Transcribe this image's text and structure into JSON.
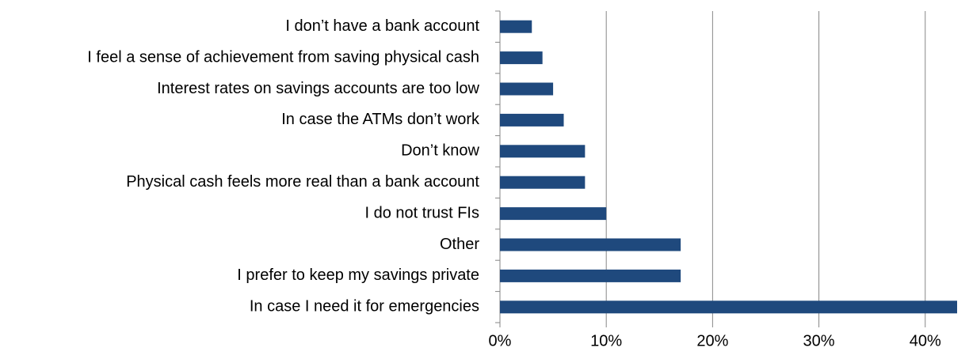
{
  "chart_data": {
    "type": "bar",
    "orientation": "horizontal",
    "categories": [
      "I don’t have a bank account",
      "I feel a sense of achievement from saving physical cash",
      "Interest rates on savings accounts are too low",
      "In case the ATMs don’t work",
      "Don’t know",
      "Physical cash feels more real than a bank account",
      "I do not trust FIs",
      "Other",
      "I prefer to keep my savings private",
      "In case I need it for emergencies"
    ],
    "values": [
      3,
      4,
      5,
      6,
      8,
      8,
      10,
      17,
      17,
      43
    ],
    "color": "#1f497d",
    "xlim": [
      0,
      43
    ],
    "xticks": [
      {
        "value": 0,
        "label": "0%"
      },
      {
        "value": 10,
        "label": "10%"
      },
      {
        "value": 20,
        "label": "20%"
      },
      {
        "value": 30,
        "label": "30%"
      },
      {
        "value": 40,
        "label": "40%"
      }
    ],
    "grid": true
  }
}
